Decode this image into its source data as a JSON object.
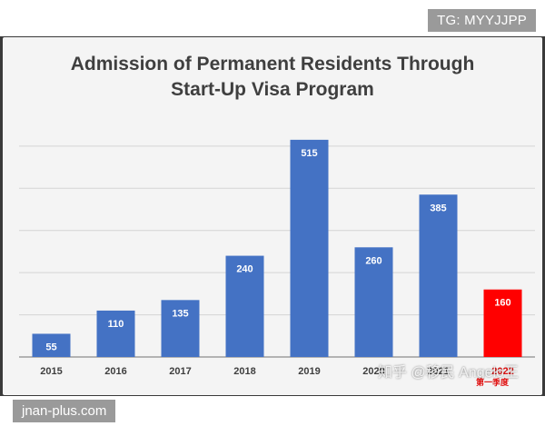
{
  "tags": {
    "top_right": "TG: MYYJJPP",
    "bottom_left": "jnan-plus.com"
  },
  "watermark": "知乎 @移民 Angelo王",
  "annotation": "第一季度",
  "colors": {
    "bar": "#4472c4",
    "highlight_bar": "#ff0000",
    "highlight_label": "#e01010",
    "grid": "#d4d4d4",
    "axis": "#8c8c8c",
    "text": "#3f3f3f"
  },
  "chart_data": {
    "type": "bar",
    "title": "Admission of Permanent Residents Through Start-Up Visa Program",
    "title_lines": [
      "Admission of Permanent Residents Through",
      "Start-Up Visa Program"
    ],
    "categories": [
      "2015",
      "2016",
      "2017",
      "2018",
      "2019",
      "2020",
      "2021",
      "2022"
    ],
    "values": [
      55,
      110,
      135,
      240,
      515,
      260,
      385,
      160
    ],
    "highlight_index": 7,
    "ylim": [
      0,
      560
    ],
    "grid": true,
    "legend": "none",
    "xlabel": "",
    "ylabel": ""
  }
}
